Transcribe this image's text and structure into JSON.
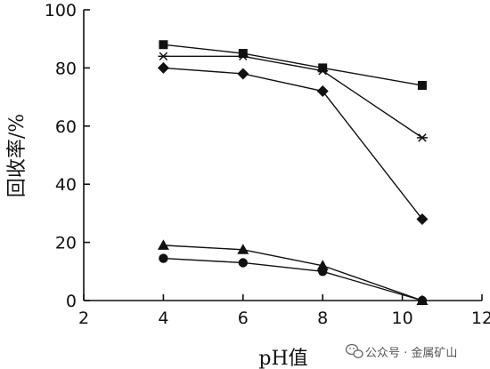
{
  "chart_data": {
    "type": "line",
    "xlabel": "pH值",
    "ylabel": "回收率/%",
    "xlim": [
      2,
      12
    ],
    "ylim": [
      0,
      100
    ],
    "xticks": [
      2,
      4,
      6,
      8,
      10,
      12
    ],
    "yticks": [
      0,
      20,
      40,
      60,
      80,
      100
    ],
    "grid": false,
    "series": [
      {
        "marker": "square",
        "x": [
          4,
          6,
          8,
          10.5
        ],
        "y": [
          88,
          85,
          80,
          74
        ]
      },
      {
        "marker": "star",
        "x": [
          4,
          6,
          8,
          10.5
        ],
        "y": [
          84,
          84,
          79,
          56
        ]
      },
      {
        "marker": "diamond",
        "x": [
          4,
          6,
          8,
          10.5
        ],
        "y": [
          80,
          78,
          72,
          28
        ]
      },
      {
        "marker": "triangle",
        "x": [
          4,
          6,
          8,
          10.5
        ],
        "y": [
          19,
          17.5,
          12,
          0
        ]
      },
      {
        "marker": "circle",
        "x": [
          4,
          6,
          8,
          10.5
        ],
        "y": [
          14.5,
          13,
          10,
          0
        ]
      }
    ]
  },
  "watermark": {
    "text": "公众号 · 金属矿山",
    "icon": "wechat-icon"
  },
  "colors": {
    "ink": "#111111",
    "watermark": "#555555"
  }
}
